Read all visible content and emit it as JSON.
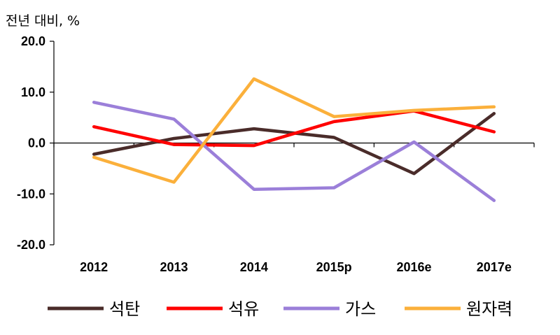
{
  "chart_data": {
    "type": "line",
    "unit_label": "전년 대비, %",
    "categories": [
      "2012",
      "2013",
      "2014",
      "2015p",
      "2016e",
      "2017e"
    ],
    "ylim": [
      -20,
      20
    ],
    "yticks": [
      "20.0",
      "10.0",
      "0.0",
      "-10.0",
      "-20.0"
    ],
    "ytick_values": [
      20,
      10,
      0,
      -10,
      -20
    ],
    "grid": false,
    "legend_position": "bottom",
    "series": [
      {
        "name": "석탄",
        "color": "#4a2c2a",
        "values": [
          -2.2,
          0.9,
          2.8,
          1.1,
          -6.0,
          5.8
        ]
      },
      {
        "name": "석유",
        "color": "#ff0000",
        "values": [
          3.2,
          -0.3,
          -0.5,
          4.2,
          6.3,
          2.2
        ]
      },
      {
        "name": "가스",
        "color": "#9b7fd9",
        "values": [
          8.0,
          4.7,
          -9.1,
          -8.8,
          0.2,
          -11.3
        ]
      },
      {
        "name": "원자력",
        "color": "#fbb03b",
        "values": [
          -2.8,
          -7.7,
          12.6,
          5.2,
          6.4,
          7.1
        ]
      }
    ]
  }
}
